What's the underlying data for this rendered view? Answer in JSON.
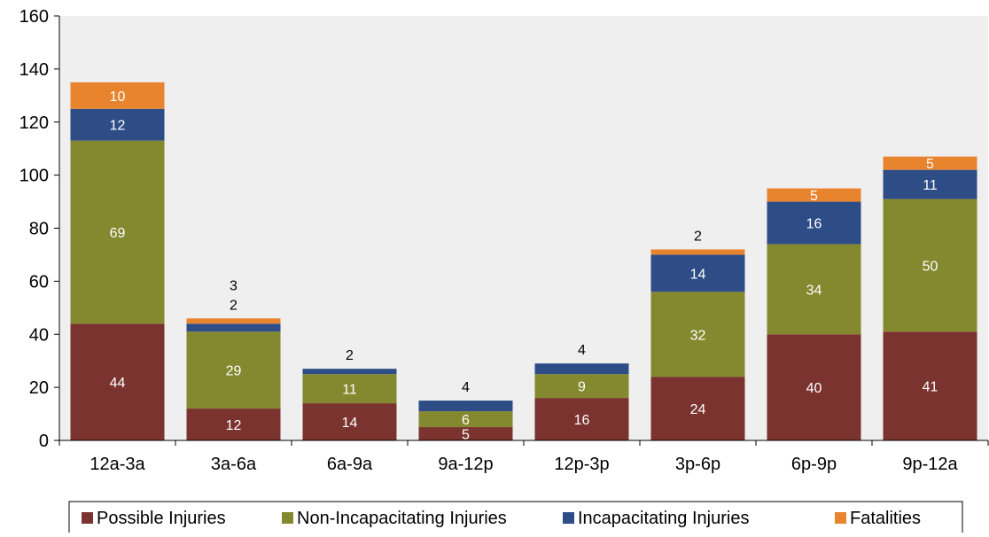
{
  "chart_data": {
    "type": "bar",
    "stacked": true,
    "categories": [
      "12a-3a",
      "3a-6a",
      "6a-9a",
      "9a-12p",
      "12p-3p",
      "3p-6p",
      "6p-9p",
      "9p-12a"
    ],
    "series": [
      {
        "name": "Possible Injuries",
        "color": "#7B3330",
        "values": [
          44,
          12,
          14,
          5,
          16,
          24,
          40,
          41
        ]
      },
      {
        "name": "Non-Incapacitating Injuries",
        "color": "#84892F",
        "values": [
          69,
          29,
          11,
          6,
          9,
          32,
          34,
          50
        ]
      },
      {
        "name": "Incapacitating Injuries",
        "color": "#2E4D87",
        "values": [
          12,
          3,
          2,
          4,
          4,
          14,
          16,
          11
        ]
      },
      {
        "name": "Fatalities",
        "color": "#E9842E",
        "values": [
          10,
          2,
          0,
          0,
          0,
          2,
          5,
          5
        ]
      }
    ],
    "data_labels": [
      [
        "44",
        "12",
        "14",
        "5",
        "16",
        "24",
        "40",
        "41"
      ],
      [
        "69",
        "29",
        "11",
        "6",
        "9",
        "32",
        "34",
        "50"
      ],
      [
        "12",
        "3",
        "2",
        "4",
        "4",
        "14",
        "16",
        "11"
      ],
      [
        "10",
        "2",
        "",
        "",
        "",
        "2",
        "5",
        "5"
      ]
    ],
    "yticks": [
      "0",
      "20",
      "40",
      "60",
      "80",
      "100",
      "120",
      "140",
      "160"
    ],
    "ylim": [
      0,
      160
    ],
    "title": "",
    "xlabel": "",
    "ylabel": "",
    "grid": false,
    "legend_position": "bottom",
    "plot_background": "#EFEFEF"
  }
}
